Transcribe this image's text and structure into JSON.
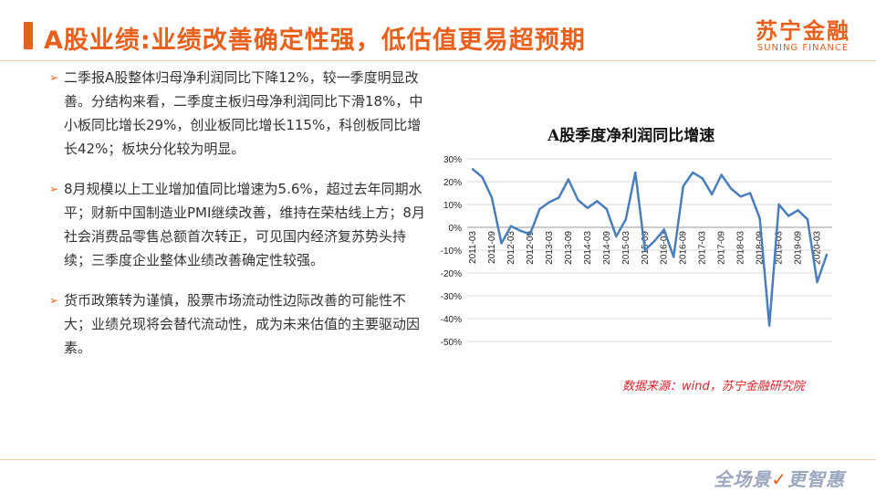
{
  "header": {
    "title": "A股业绩:业绩改善确定性强，低估值更易超预期",
    "logo_cn": "苏宁金融",
    "logo_en": "SUNING FINANCE"
  },
  "bullets": [
    "二季报A股整体归母净利润同比下降12%，较一季度明显改善。分结构来看，二季度主板归母净利润同比下滑18%，中小板同比增长29%，创业板同比增长115%，科创板同比增长42%；板块分化较为明显。",
    "8月规模以上工业增加值同比增速为5.6%，超过去年同期水平；财新中国制造业PMI继续改善，维持在荣枯线上方；8月社会消费品零售总额首次转正，可见国内经济复苏势头持续；三季度企业整体业绩改善确定性较强。",
    "货币政策转为谨慎，股票市场流动性边际改善的可能性不大；业绩兑现将会替代流动性，成为未来估值的主要驱动因素。"
  ],
  "source_note": "数据来源：wind，苏宁金融研究院",
  "footer": {
    "slogan_a": "全场景",
    "slogan_b": "更智惠"
  },
  "colors": {
    "accent": "#e8601c",
    "series": "#4a7ebb",
    "source": "#e0202a"
  },
  "chart_data": {
    "type": "line",
    "title": "A股季度净利润同比增速",
    "x": [
      "2011-03",
      "2011-06",
      "2011-09",
      "2011-12",
      "2012-03",
      "2012-06",
      "2012-09",
      "2012-12",
      "2013-03",
      "2013-06",
      "2013-09",
      "2013-12",
      "2014-03",
      "2014-06",
      "2014-09",
      "2014-12",
      "2015-03",
      "2015-06",
      "2015-09",
      "2015-12",
      "2016-03",
      "2016-06",
      "2016-09",
      "2016-12",
      "2017-03",
      "2017-06",
      "2017-09",
      "2017-12",
      "2018-03",
      "2018-06",
      "2018-09",
      "2018-12",
      "2019-03",
      "2019-06",
      "2019-09",
      "2019-12",
      "2020-03",
      "2020-06"
    ],
    "xticks": [
      "2011-03",
      "2011-09",
      "2012-03",
      "2012-09",
      "2013-03",
      "2013-09",
      "2014-03",
      "2014-09",
      "2015-03",
      "2015-09",
      "2016-03",
      "2016-09",
      "2017-03",
      "2017-09",
      "2018-03",
      "2018-09",
      "2019-03",
      "2019-09",
      "2020-03"
    ],
    "values": [
      25.5,
      22,
      13,
      -7,
      0.5,
      -1.5,
      -3,
      8,
      11,
      13,
      21,
      12,
      8.5,
      11.5,
      8,
      -4,
      3.5,
      24,
      -10,
      -6,
      -1,
      -13,
      18,
      24,
      21.5,
      14.5,
      23,
      17,
      13.5,
      15,
      4,
      -43,
      10,
      5,
      7.5,
      3.5,
      -24,
      -12
    ],
    "ylim": [
      -50,
      30
    ],
    "yticks": [
      30,
      20,
      10,
      0,
      -10,
      -20,
      -30,
      -40,
      -50
    ],
    "ytick_labels": [
      "30%",
      "20%",
      "10%",
      "0%",
      "-10%",
      "-20%",
      "-30%",
      "-40%",
      "-50%"
    ],
    "grid": true,
    "legend": false,
    "xlabel": "",
    "ylabel": ""
  }
}
